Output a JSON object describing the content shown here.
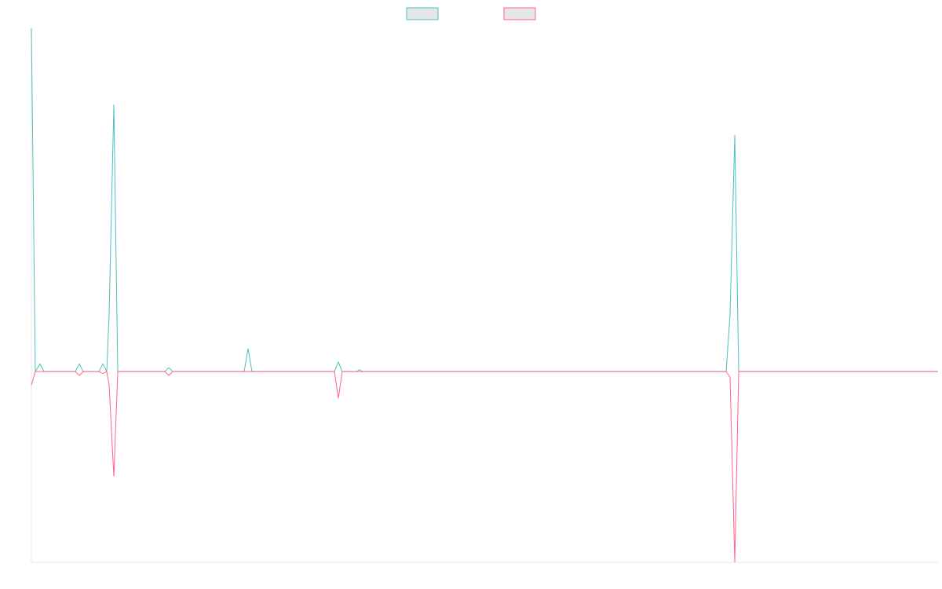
{
  "chart_data": {
    "type": "line",
    "x": [
      0,
      5,
      11,
      16,
      56,
      61,
      66,
      86,
      91,
      96,
      99,
      105,
      110,
      170,
      175,
      180,
      271,
      276,
      281,
      386,
      391,
      396,
      414,
      418,
      422,
      885,
      890,
      896,
      901,
      1155
    ],
    "series": [
      {
        "color": "#4bc0c0",
        "values": [
          180,
          0,
          4,
          0,
          0,
          4,
          0,
          0,
          4,
          0,
          30,
          140,
          0,
          0,
          2,
          0,
          0,
          12,
          0,
          0,
          5,
          0,
          0,
          1,
          0,
          0,
          30,
          124,
          0,
          0
        ]
      },
      {
        "color": "#ff6384",
        "values": [
          -7,
          0,
          0,
          0,
          0,
          -2,
          0,
          0,
          -1,
          0,
          -7,
          -55,
          0,
          0,
          -2,
          0,
          0,
          0,
          0,
          0,
          -14,
          0,
          0,
          0,
          0,
          0,
          -3,
          -100,
          0,
          0
        ]
      }
    ],
    "xlim": [
      0,
      1155
    ],
    "ylim": [
      -100,
      180
    ],
    "legend": "top"
  }
}
